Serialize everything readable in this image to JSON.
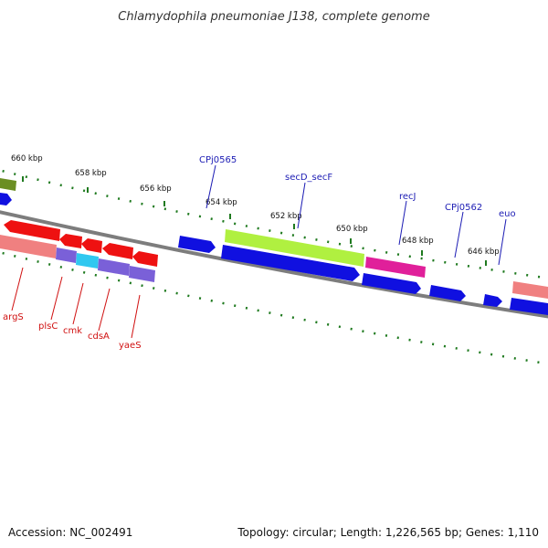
{
  "title": "Chlamydophila pneumoniae J138, complete genome",
  "footer": {
    "accession": "Accession: NC_002491",
    "summary": "Topology: circular; Length: 1,226,565 bp; Genes: 1,110"
  },
  "colors": {
    "tick": "#1f7a1f",
    "backbone": "#7d7d7d",
    "forward_label": "#1c1cb4",
    "reverse_label": "#d01010"
  },
  "scale": [
    "660 kbp",
    "658 kbp",
    "656 kbp",
    "654 kbp",
    "652 kbp",
    "650 kbp",
    "648 kbp",
    "646 kbp"
  ],
  "genes_forward": [
    {
      "label": "CPj0565",
      "color": "#1010e0"
    },
    {
      "label": "secD_secF",
      "color": "#b0f040"
    },
    {
      "label": "recJ",
      "color": "#e0209a"
    },
    {
      "label": "CPj0562",
      "color": "#1010e0"
    },
    {
      "label": "euo",
      "color": "#1010e0"
    }
  ],
  "genes_reverse": [
    {
      "label": "argS",
      "color": "#f08080"
    },
    {
      "label": "plsC",
      "color": "#7a60d8"
    },
    {
      "label": "cmk",
      "color": "#30c8f0"
    },
    {
      "label": "cdsA",
      "color": "#7a60d8"
    },
    {
      "label": "yaeS",
      "color": "#7a60d8"
    }
  ]
}
